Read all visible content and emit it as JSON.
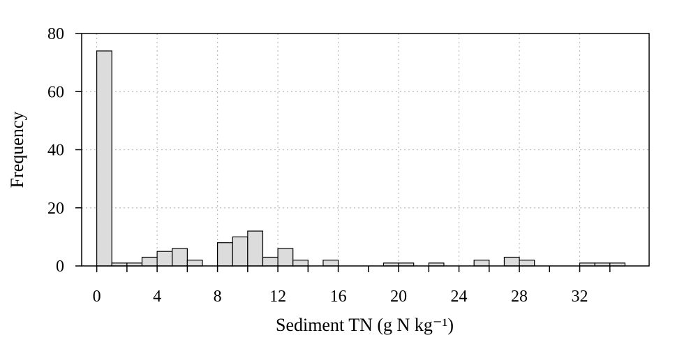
{
  "chart_data": {
    "type": "bar",
    "xlabel": "Sediment TN (g N kg⁻¹)",
    "ylabel": "Frequency",
    "xlim": [
      -1,
      36.6
    ],
    "ylim": [
      0,
      80
    ],
    "bin_width": 1,
    "bins": [
      {
        "x0": 0,
        "value": 74
      },
      {
        "x0": 1,
        "value": 1
      },
      {
        "x0": 2,
        "value": 1
      },
      {
        "x0": 3,
        "value": 3
      },
      {
        "x0": 4,
        "value": 5
      },
      {
        "x0": 5,
        "value": 6
      },
      {
        "x0": 6,
        "value": 2
      },
      {
        "x0": 7,
        "value": 0
      },
      {
        "x0": 8,
        "value": 8
      },
      {
        "x0": 9,
        "value": 10
      },
      {
        "x0": 10,
        "value": 12
      },
      {
        "x0": 11,
        "value": 3
      },
      {
        "x0": 12,
        "value": 6
      },
      {
        "x0": 13,
        "value": 2
      },
      {
        "x0": 14,
        "value": 0
      },
      {
        "x0": 15,
        "value": 2
      },
      {
        "x0": 16,
        "value": 0
      },
      {
        "x0": 17,
        "value": 0
      },
      {
        "x0": 18,
        "value": 0
      },
      {
        "x0": 19,
        "value": 1
      },
      {
        "x0": 20,
        "value": 1
      },
      {
        "x0": 21,
        "value": 0
      },
      {
        "x0": 22,
        "value": 1
      },
      {
        "x0": 23,
        "value": 0
      },
      {
        "x0": 24,
        "value": 0
      },
      {
        "x0": 25,
        "value": 2
      },
      {
        "x0": 26,
        "value": 0
      },
      {
        "x0": 27,
        "value": 3
      },
      {
        "x0": 28,
        "value": 2
      },
      {
        "x0": 29,
        "value": 0
      },
      {
        "x0": 30,
        "value": 0
      },
      {
        "x0": 31,
        "value": 0
      },
      {
        "x0": 32,
        "value": 1
      },
      {
        "x0": 33,
        "value": 1
      },
      {
        "x0": 34,
        "value": 1
      }
    ],
    "x_ticks": [
      "0",
      "4",
      "8",
      "12",
      "16",
      "20",
      "24",
      "28",
      "32"
    ],
    "y_ticks": [
      "0",
      "20",
      "40",
      "60",
      "80"
    ],
    "grid": true,
    "bar_color": "#dcdcdc",
    "edge_color": "#000000"
  }
}
